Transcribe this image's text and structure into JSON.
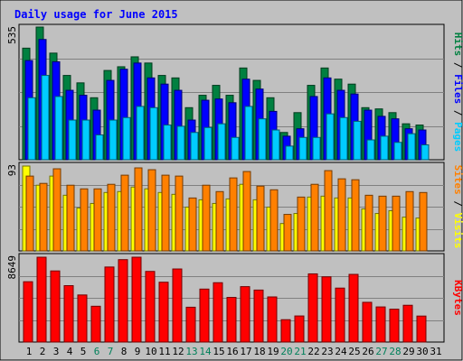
{
  "chart_data": [
    {
      "type": "bar",
      "panel": "pages-files-hits",
      "title": "Daily usage for June 2015",
      "ylabel_max": "535",
      "legend": [
        {
          "name": "Pages",
          "color": "#00ccff"
        },
        {
          "name": "Files",
          "color": "#0000ff"
        },
        {
          "name": "Hits",
          "color": "#008040"
        }
      ],
      "separator": " / ",
      "x": [
        "1",
        "2",
        "3",
        "4",
        "5",
        "6",
        "7",
        "8",
        "9",
        "10",
        "11",
        "12",
        "13",
        "14",
        "15",
        "16",
        "17",
        "18",
        "19",
        "20",
        "21",
        "22",
        "23",
        "24",
        "25",
        "26",
        "27",
        "28",
        "29",
        "30",
        "31"
      ],
      "weekend_days": [
        "6",
        "7",
        "13",
        "14",
        "20",
        "21",
        "27",
        "28"
      ],
      "ylim": [
        0,
        535
      ],
      "series": [
        {
          "name": "Hits",
          "values": [
            450,
            535,
            430,
            340,
            310,
            250,
            360,
            375,
            415,
            390,
            340,
            330,
            210,
            260,
            300,
            260,
            370,
            320,
            250,
            110,
            190,
            300,
            370,
            325,
            305,
            210,
            205,
            190,
            145,
            140,
            0
          ]
        },
        {
          "name": "Files",
          "values": [
            400,
            485,
            395,
            280,
            260,
            200,
            320,
            365,
            390,
            330,
            305,
            280,
            160,
            240,
            245,
            230,
            325,
            285,
            195,
            95,
            125,
            255,
            330,
            280,
            265,
            200,
            175,
            165,
            125,
            120,
            0
          ]
        },
        {
          "name": "Pages",
          "values": [
            250,
            340,
            255,
            160,
            160,
            100,
            160,
            170,
            215,
            210,
            140,
            135,
            110,
            130,
            145,
            90,
            215,
            165,
            120,
            55,
            90,
            90,
            185,
            170,
            155,
            80,
            95,
            70,
            105,
            60,
            0
          ]
        }
      ]
    },
    {
      "type": "bar",
      "panel": "sites-visits",
      "ylabel_max": "93",
      "legend": [
        {
          "name": "Sites",
          "color": "#ff8000"
        },
        {
          "name": "Visits",
          "color": "#ffff00"
        }
      ],
      "separator": " / ",
      "ylim": [
        0,
        93
      ],
      "series": [
        {
          "name": "Visits",
          "values": [
            93,
            72,
            82,
            61,
            47,
            52,
            64,
            65,
            70,
            68,
            64,
            62,
            48,
            56,
            52,
            57,
            73,
            56,
            48,
            30,
            41,
            59,
            60,
            58,
            58,
            46,
            41,
            44,
            37,
            36,
            0
          ]
        },
        {
          "name": "Sites",
          "values": [
            82,
            74,
            90,
            72,
            68,
            68,
            73,
            83,
            91,
            89,
            83,
            82,
            58,
            72,
            65,
            80,
            87,
            71,
            67,
            40,
            59,
            73,
            88,
            79,
            78,
            61,
            60,
            60,
            65,
            64,
            0
          ]
        }
      ]
    },
    {
      "type": "bar",
      "panel": "kbytes",
      "ylabel_max": "8649",
      "legend": [
        {
          "name": "KBytes",
          "color": "#ff0000"
        }
      ],
      "ylim": [
        0,
        8649
      ],
      "series": [
        {
          "name": "KBytes",
          "values": [
            6150,
            8649,
            7250,
            5750,
            4800,
            3650,
            7650,
            8400,
            8649,
            7200,
            6100,
            7450,
            3550,
            5400,
            6050,
            4550,
            5650,
            5300,
            4600,
            2280,
            2660,
            6950,
            6650,
            5500,
            6900,
            4050,
            3580,
            3350,
            3750,
            2650,
            0
          ]
        }
      ]
    }
  ]
}
